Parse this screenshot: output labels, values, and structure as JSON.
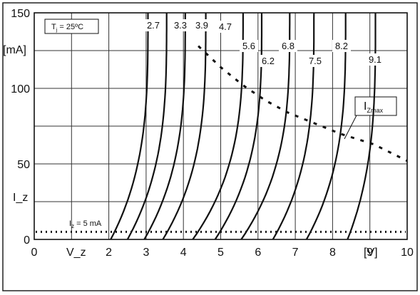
{
  "chart_data": {
    "type": "line",
    "title": "",
    "xlabel": "V_z",
    "x_unit": "[V]",
    "ylabel": "I_z",
    "y_unit": "[mA]",
    "xlim": [
      0,
      10
    ],
    "ylim": [
      0,
      150
    ],
    "x_ticks": [
      "0",
      "1",
      "2",
      "3",
      "4",
      "5",
      "6",
      "7",
      "8",
      "9",
      "10"
    ],
    "y_ticks": [
      "0",
      "50",
      "100",
      "150"
    ],
    "grid": true,
    "legend": "none",
    "condition_box": "Tj = 25ºC",
    "condition_box_main": "T",
    "condition_box_sub": "j",
    "condition_box_rest": " = 25ºC",
    "series": [
      {
        "name": "2.7",
        "knee_v": 2.05,
        "v_at_max": 3.05,
        "i_max": 150
      },
      {
        "name": "3.3",
        "knee_v": 2.5,
        "v_at_max": 3.55,
        "i_max": 150
      },
      {
        "name": "3.9",
        "knee_v": 2.95,
        "v_at_max": 4.05,
        "i_max": 150
      },
      {
        "name": "4.7",
        "knee_v": 3.45,
        "v_at_max": 4.6,
        "i_max": 150
      },
      {
        "name": "5.6",
        "knee_v": 4.25,
        "v_at_max": 5.6,
        "i_max": 150
      },
      {
        "name": "6.2",
        "knee_v": 4.85,
        "v_at_max": 6.1,
        "i_max": 150
      },
      {
        "name": "6.8",
        "knee_v": 5.55,
        "v_at_max": 6.85,
        "i_max": 150
      },
      {
        "name": "7.5",
        "knee_v": 6.4,
        "v_at_max": 7.5,
        "i_max": 150
      },
      {
        "name": "8.2",
        "knee_v": 7.3,
        "v_at_max": 8.35,
        "i_max": 150
      },
      {
        "name": "9.1",
        "knee_v": 8.4,
        "v_at_max": 9.15,
        "i_max": 150
      }
    ],
    "izmax_curve": {
      "name": "Izmax",
      "label_main": "I",
      "label_sub": "Zmax",
      "x": [
        4.4,
        5.0,
        5.6,
        6.2,
        6.8,
        7.5,
        8.2,
        9.1,
        10.0
      ],
      "y": [
        128,
        114,
        102,
        92,
        84,
        77,
        70,
        63,
        52
      ]
    },
    "reference_line": {
      "label_main": "I",
      "label_sub": "z",
      "label_rest": " = 5 mA",
      "y": 5
    }
  }
}
